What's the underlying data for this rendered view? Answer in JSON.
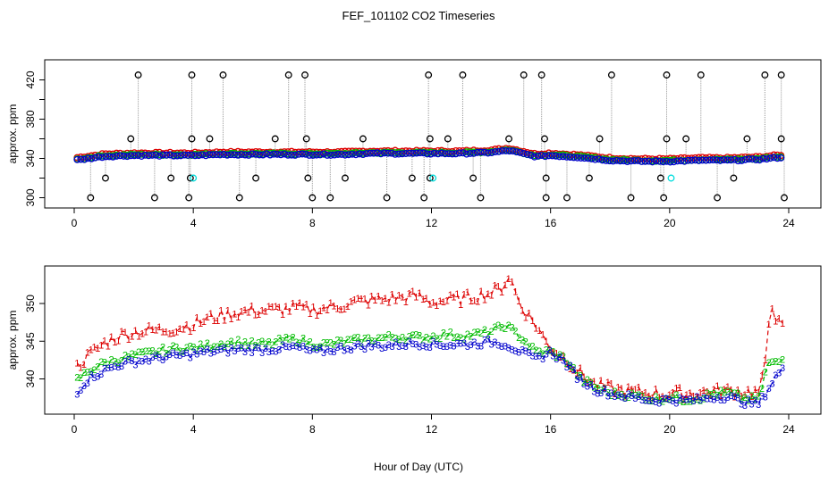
{
  "title": "FEF_101102  CO2 Timeseries",
  "xlabel": "Hour of Day (UTC)",
  "colors": {
    "s1": "#dd0000",
    "s2": "#00bb00",
    "s3": "#0000cc",
    "flag": "#000000",
    "cyan": "#00dddd",
    "guide": "#999999"
  },
  "chart_data": [
    {
      "type": "scatter",
      "panel": "top",
      "ylabel": "approx. ppm",
      "xlim": [
        0,
        24
      ],
      "ylim": [
        295,
        435
      ],
      "xticks": [
        0,
        4,
        8,
        12,
        16,
        20,
        24
      ],
      "yticks": [
        300,
        340,
        380,
        420
      ],
      "extra_yticks": [
        320,
        360,
        400
      ],
      "grid": false,
      "legend": "none",
      "baseline": [
        [
          0,
          338
        ],
        [
          1,
          342
        ],
        [
          2,
          343
        ],
        [
          3,
          343
        ],
        [
          4,
          343
        ],
        [
          5,
          344
        ],
        [
          6,
          344
        ],
        [
          7,
          344
        ],
        [
          8,
          344
        ],
        [
          9,
          344
        ],
        [
          10,
          345
        ],
        [
          11,
          345
        ],
        [
          12,
          345
        ],
        [
          13,
          345
        ],
        [
          14,
          346
        ],
        [
          14.6,
          348
        ],
        [
          15.5,
          342
        ],
        [
          16,
          343
        ],
        [
          17,
          341
        ],
        [
          18,
          338
        ],
        [
          19,
          337
        ],
        [
          20,
          337
        ],
        [
          21,
          338
        ],
        [
          22,
          338
        ],
        [
          23,
          339
        ],
        [
          23.7,
          341
        ]
      ],
      "high_flags": [
        2.15,
        3.95,
        5.0,
        7.2,
        7.75,
        11.9,
        13.05,
        15.1,
        15.7,
        18.05,
        19.9,
        21.05,
        23.2,
        23.75
      ],
      "low_flags": [
        0.55,
        2.7,
        3.85,
        5.55,
        8.0,
        8.6,
        10.5,
        11.75,
        13.65,
        15.85,
        16.55,
        18.7,
        19.8,
        21.6,
        23.85
      ],
      "flags_360": [
        1.9,
        3.95,
        4.55,
        6.75,
        7.8,
        9.7,
        11.95,
        12.55,
        14.6,
        15.8,
        17.65,
        19.9,
        20.55,
        22.6,
        23.75
      ],
      "flags_320": [
        1.05,
        3.25,
        3.9,
        6.1,
        7.85,
        9.1,
        11.35,
        11.95,
        13.4,
        15.85,
        17.3,
        19.7,
        22.15
      ],
      "cyan_points": [
        [
          4.0,
          320
        ],
        [
          12.05,
          320
        ],
        [
          20.05,
          320
        ]
      ]
    },
    {
      "type": "line",
      "panel": "bottom",
      "ylabel": "approx. ppm",
      "xlim": [
        0,
        24
      ],
      "ylim": [
        335.8,
        354.5
      ],
      "xticks": [
        0,
        4,
        8,
        12,
        16,
        20,
        24
      ],
      "yticks": [
        340,
        345,
        350
      ],
      "grid": false,
      "legend": "none",
      "series": [
        {
          "marker": "1",
          "values": [
            [
              0,
              341
            ],
            [
              0.5,
              343
            ],
            [
              1,
              344.5
            ],
            [
              1.5,
              345.5
            ],
            [
              2,
              346
            ],
            [
              2.5,
              346.2
            ],
            [
              3,
              346.3
            ],
            [
              3.5,
              346.6
            ],
            [
              4,
              347
            ],
            [
              4.5,
              347.8
            ],
            [
              5,
              348.2
            ],
            [
              5.5,
              348.6
            ],
            [
              6,
              348.8
            ],
            [
              6.5,
              348.9
            ],
            [
              7,
              349
            ],
            [
              7.5,
              349.2
            ],
            [
              8,
              348.9
            ],
            [
              8.5,
              349.2
            ],
            [
              9,
              349.6
            ],
            [
              9.5,
              350
            ],
            [
              10,
              350.2
            ],
            [
              10.5,
              350.4
            ],
            [
              11,
              350.6
            ],
            [
              11.5,
              350.8
            ],
            [
              12,
              350
            ],
            [
              12.5,
              350.2
            ],
            [
              13,
              350.4
            ],
            [
              13.5,
              350.8
            ],
            [
              14,
              351.2
            ],
            [
              14.4,
              352
            ],
            [
              14.6,
              353.5
            ],
            [
              15,
              349.5
            ],
            [
              15.5,
              347
            ],
            [
              15.8,
              345
            ],
            [
              16,
              344
            ],
            [
              16.5,
              342.5
            ],
            [
              17,
              340.5
            ],
            [
              17.5,
              339
            ],
            [
              18,
              338.5
            ],
            [
              18.5,
              338.2
            ],
            [
              19,
              338
            ],
            [
              19.5,
              337.9
            ],
            [
              19.9,
              337.6
            ],
            [
              20,
              338
            ],
            [
              20.5,
              337.8
            ],
            [
              21,
              338
            ],
            [
              21.5,
              338.2
            ],
            [
              22,
              338.2
            ],
            [
              22.5,
              338.1
            ],
            [
              23,
              338
            ],
            [
              23.2,
              341
            ],
            [
              23.4,
              350.5
            ],
            [
              23.6,
              347.5
            ],
            [
              23.8,
              346.5
            ]
          ]
        },
        {
          "marker": "2",
          "values": [
            [
              0,
              339.5
            ],
            [
              0.5,
              341
            ],
            [
              1,
              342
            ],
            [
              1.5,
              342.5
            ],
            [
              2,
              343
            ],
            [
              2.5,
              343.3
            ],
            [
              3,
              343.7
            ],
            [
              3.5,
              344
            ],
            [
              4,
              344
            ],
            [
              4.5,
              344.3
            ],
            [
              5,
              344.6
            ],
            [
              5.5,
              344.8
            ],
            [
              6,
              344.5
            ],
            [
              6.5,
              344.5
            ],
            [
              7,
              345
            ],
            [
              7.5,
              345.2
            ],
            [
              8,
              344.5
            ],
            [
              8.5,
              344.5
            ],
            [
              9,
              344.8
            ],
            [
              9.5,
              345
            ],
            [
              10,
              345.2
            ],
            [
              10.5,
              345.4
            ],
            [
              11,
              345.5
            ],
            [
              11.5,
              345.4
            ],
            [
              12,
              345.5
            ],
            [
              12.5,
              345.8
            ],
            [
              13,
              345.6
            ],
            [
              13.5,
              345.8
            ],
            [
              14,
              346.2
            ],
            [
              14.5,
              347
            ],
            [
              15,
              345.5
            ],
            [
              15.5,
              343.5
            ],
            [
              16,
              343.5
            ],
            [
              16.5,
              342.5
            ],
            [
              17,
              340
            ],
            [
              17.5,
              338.8
            ],
            [
              18,
              338
            ],
            [
              18.5,
              337.8
            ],
            [
              19,
              337.6
            ],
            [
              19.5,
              337.2
            ],
            [
              20,
              337.5
            ],
            [
              20.5,
              337.2
            ],
            [
              21,
              337.4
            ],
            [
              21.5,
              338
            ],
            [
              22,
              338
            ],
            [
              22.5,
              337.3
            ],
            [
              23,
              337.2
            ],
            [
              23.3,
              342
            ],
            [
              23.6,
              342
            ],
            [
              23.8,
              342.5
            ]
          ]
        },
        {
          "marker": "3",
          "values": [
            [
              0,
              337.8
            ],
            [
              0.5,
              340
            ],
            [
              1,
              341
            ],
            [
              1.5,
              341.8
            ],
            [
              2,
              342.2
            ],
            [
              2.5,
              342.5
            ],
            [
              3,
              342.8
            ],
            [
              3.5,
              343
            ],
            [
              4,
              343.2
            ],
            [
              4.5,
              343.5
            ],
            [
              5,
              343.6
            ],
            [
              5.5,
              343.8
            ],
            [
              6,
              343.8
            ],
            [
              6.5,
              343.8
            ],
            [
              7,
              344
            ],
            [
              7.5,
              344.1
            ],
            [
              8,
              343.5
            ],
            [
              8.5,
              343.7
            ],
            [
              9,
              344
            ],
            [
              9.5,
              344.2
            ],
            [
              10,
              344.3
            ],
            [
              10.5,
              344.3
            ],
            [
              11,
              344.5
            ],
            [
              11.5,
              344.6
            ],
            [
              12,
              344.5
            ],
            [
              12.5,
              344.4
            ],
            [
              13,
              344.5
            ],
            [
              13.5,
              344.6
            ],
            [
              14,
              344.8
            ],
            [
              14.5,
              344.5
            ],
            [
              15,
              343.5
            ],
            [
              15.5,
              342.5
            ],
            [
              16,
              343.5
            ],
            [
              16.5,
              342
            ],
            [
              17,
              339.8
            ],
            [
              17.5,
              338.5
            ],
            [
              18,
              338
            ],
            [
              18.5,
              337.6
            ],
            [
              19,
              337.3
            ],
            [
              19.5,
              337
            ],
            [
              20,
              337.2
            ],
            [
              20.5,
              337
            ],
            [
              21,
              337.2
            ],
            [
              21.5,
              337.5
            ],
            [
              22,
              337.5
            ],
            [
              22.5,
              336.8
            ],
            [
              23,
              336.6
            ],
            [
              23.3,
              338.5
            ],
            [
              23.6,
              340.5
            ],
            [
              23.8,
              341
            ]
          ]
        }
      ]
    }
  ]
}
